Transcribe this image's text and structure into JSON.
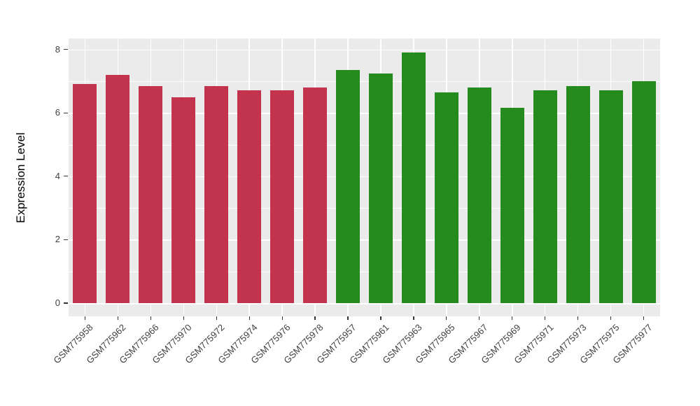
{
  "chart_data": {
    "type": "bar",
    "title": "",
    "xlabel": "",
    "ylabel": "Expression Level",
    "categories": [
      "GSM775958",
      "GSM775962",
      "GSM775966",
      "GSM775970",
      "GSM775972",
      "GSM775974",
      "GSM775976",
      "GSM775978",
      "GSM775957",
      "GSM775961",
      "GSM775963",
      "GSM775965",
      "GSM775967",
      "GSM775969",
      "GSM775971",
      "GSM775973",
      "GSM775975",
      "GSM775977"
    ],
    "values": [
      6.9,
      7.2,
      6.85,
      6.5,
      6.85,
      6.7,
      6.7,
      6.8,
      7.35,
      7.25,
      7.9,
      6.65,
      6.8,
      6.15,
      6.7,
      6.85,
      6.7,
      7.0
    ],
    "bar_colors": [
      "#C2334E",
      "#C2334E",
      "#C2334E",
      "#C2334E",
      "#C2334E",
      "#C2334E",
      "#C2334E",
      "#C2334E",
      "#268B1E",
      "#268B1E",
      "#268B1E",
      "#268B1E",
      "#268B1E",
      "#268B1E",
      "#268B1E",
      "#268B1E",
      "#268B1E",
      "#268B1E"
    ],
    "groups": [
      {
        "name": "crimson-group",
        "color": "#C2334E",
        "count": 8
      },
      {
        "name": "green-group",
        "color": "#268B1E",
        "count": 10
      }
    ],
    "yticks": [
      "0",
      "2",
      "4",
      "6",
      "8"
    ],
    "ytick_values": [
      0,
      2,
      4,
      6,
      8
    ],
    "yminor_values": [
      1,
      3,
      5,
      7
    ],
    "ylim": [
      0,
      8.34
    ],
    "legend": "none",
    "grid": "white major and minor gridlines on gray panel"
  },
  "colors": {
    "page_background": "#FFFFFF",
    "panel_background": "#EBEBEB",
    "grid_line": "#FFFFFF",
    "bar_red": "#C2334E",
    "bar_green": "#268B1E",
    "axis_text": "#404040",
    "axis_title": "#000000",
    "tick_mark": "#333333"
  }
}
